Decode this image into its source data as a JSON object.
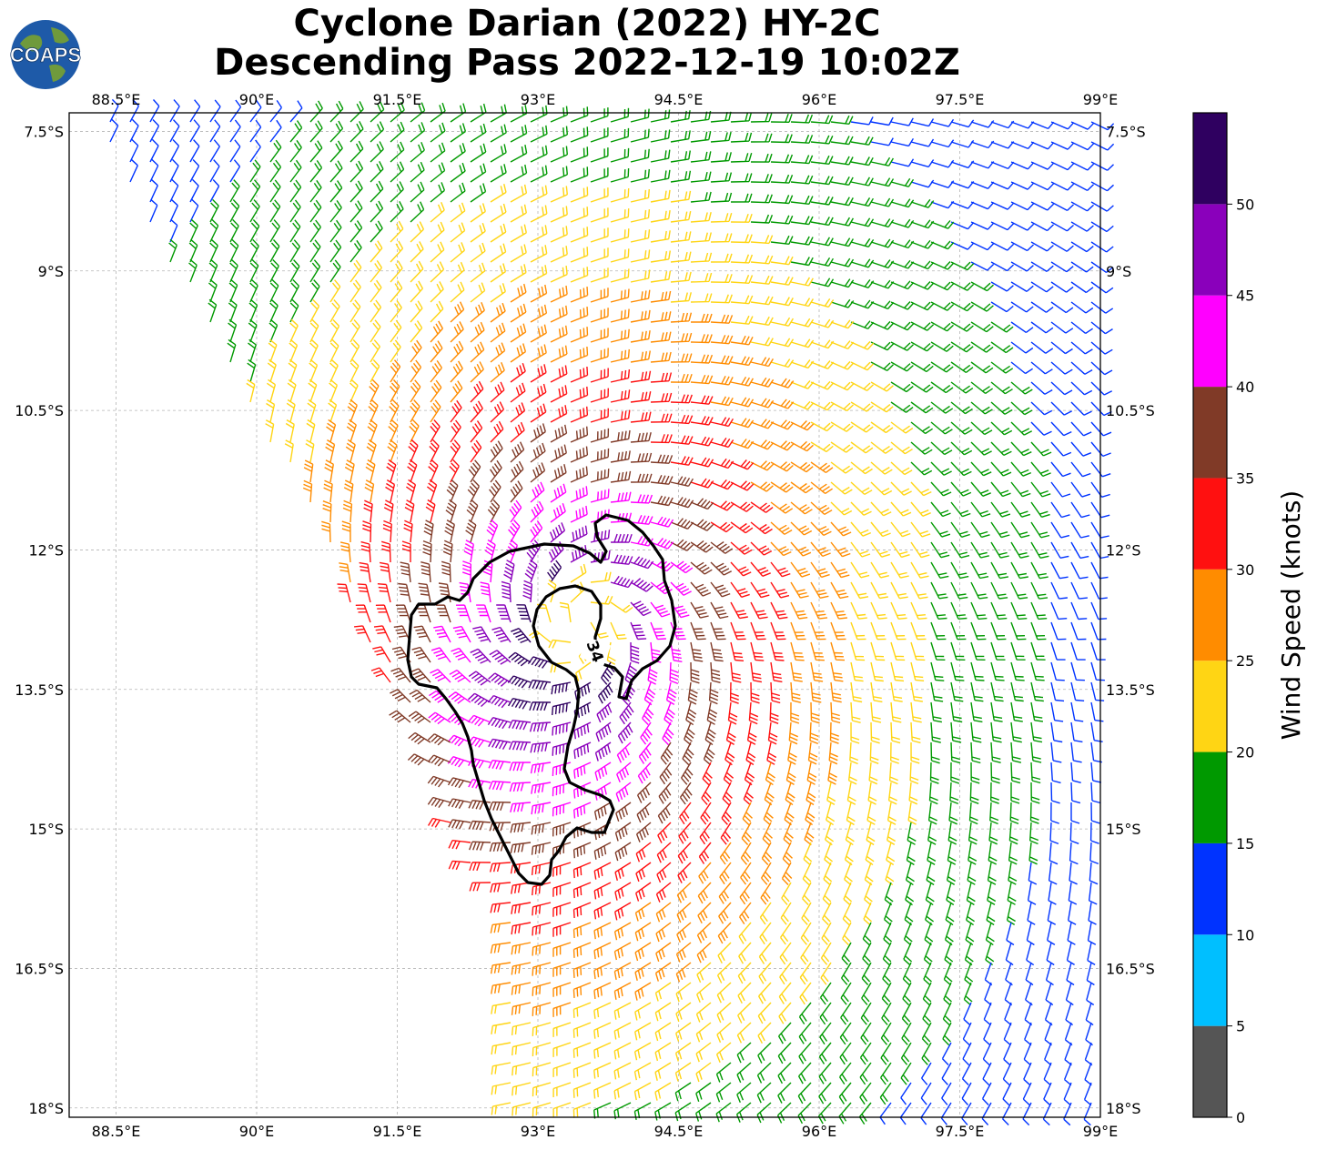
{
  "title_line1": "Cyclone Darian (2022) HY-2C",
  "title_line2": "Descending Pass 2022-12-19 10:02Z",
  "logo": {
    "text": "COAPS",
    "icon": "globe-icon"
  },
  "map": {
    "lon_range": [
      88.0,
      99.0
    ],
    "lat_range": [
      -18.1,
      -7.3
    ],
    "lon_ticks": [
      {
        "value": 88.5,
        "label": "88.5°E"
      },
      {
        "value": 90.0,
        "label": "90°E"
      },
      {
        "value": 91.5,
        "label": "91.5°E"
      },
      {
        "value": 93.0,
        "label": "93°E"
      },
      {
        "value": 94.5,
        "label": "94.5°E"
      },
      {
        "value": 96.0,
        "label": "96°E"
      },
      {
        "value": 97.5,
        "label": "97.5°E"
      },
      {
        "value": 99.0,
        "label": "99°E"
      }
    ],
    "lat_ticks": [
      {
        "value": -7.5,
        "label": "7.5°S"
      },
      {
        "value": -9.0,
        "label": "9°S"
      },
      {
        "value": -10.5,
        "label": "10.5°S"
      },
      {
        "value": -12.0,
        "label": "12°S"
      },
      {
        "value": -13.5,
        "label": "13.5°S"
      },
      {
        "value": -15.0,
        "label": "15°S"
      },
      {
        "value": -16.5,
        "label": "16.5°S"
      },
      {
        "value": -18.0,
        "label": "18°S"
      }
    ],
    "gridlines": true,
    "swath_left_edge": [
      [
        88.3,
        -7.5
      ],
      [
        90.5,
        -11.5
      ],
      [
        92.0,
        -14.8
      ],
      [
        92.5,
        -15.8
      ],
      [
        92.6,
        -18.1
      ]
    ],
    "cyclone_center": [
      93.45,
      -12.8
    ],
    "contour_label": "34"
  },
  "chart_data": {
    "type": "wind-barb-map",
    "units": "knots",
    "field": [
      {
        "lon": 93.4,
        "lat": -12.8,
        "speed": 45,
        "note": "eyewall maximum (magenta/brown zone)"
      },
      {
        "lon": 92.3,
        "lat": -13.5,
        "speed": 37
      },
      {
        "lon": 92.8,
        "lat": -15.2,
        "speed": 30
      },
      {
        "lon": 95.0,
        "lat": -12.5,
        "speed": 25
      },
      {
        "lon": 95.5,
        "lat": -10.0,
        "speed": 22
      },
      {
        "lon": 91.0,
        "lat": -10.0,
        "speed": 17
      },
      {
        "lon": 89.2,
        "lat": -9.0,
        "speed": 12
      },
      {
        "lon": 98.0,
        "lat": -13.2,
        "speed": 14
      }
    ],
    "contour": {
      "level": 34,
      "label": "34"
    }
  },
  "colorbar": {
    "label": "Wind Speed (knots)",
    "bins": [
      {
        "from": 0,
        "to": 5,
        "color": "#555555"
      },
      {
        "from": 5,
        "to": 10,
        "color": "#00bfff"
      },
      {
        "from": 10,
        "to": 15,
        "color": "#0033ff"
      },
      {
        "from": 15,
        "to": 20,
        "color": "#009900"
      },
      {
        "from": 20,
        "to": 25,
        "color": "#ffd514"
      },
      {
        "from": 25,
        "to": 30,
        "color": "#ff8c00"
      },
      {
        "from": 30,
        "to": 35,
        "color": "#ff1010"
      },
      {
        "from": 35,
        "to": 40,
        "color": "#803a27"
      },
      {
        "from": 40,
        "to": 45,
        "color": "#ff00ff"
      },
      {
        "from": 45,
        "to": 50,
        "color": "#8a00bb"
      },
      {
        "from": 50,
        "to": 55,
        "color": "#2f0060"
      }
    ],
    "tick_labels": [
      "0",
      "5",
      "10",
      "15",
      "20",
      "25",
      "30",
      "35",
      "40",
      "45",
      "50"
    ]
  }
}
